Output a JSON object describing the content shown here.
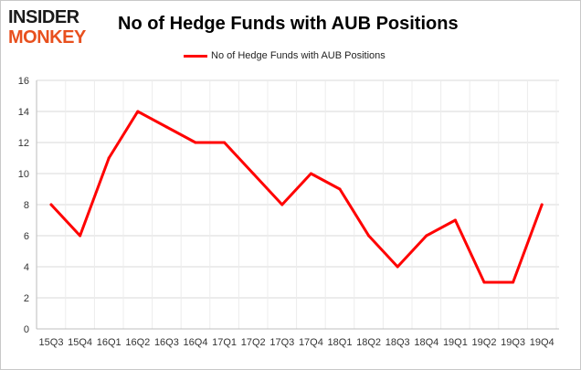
{
  "logo": {
    "line1": "INSIDER",
    "line2": "MONKEY",
    "color_dark": "#1a1a1a",
    "color_accent": "#e8501e"
  },
  "chart_data": {
    "type": "line",
    "title": "No of Hedge Funds with AUB Positions",
    "legend_position": "top-center",
    "grid": true,
    "ylim": [
      0,
      16
    ],
    "yticks": [
      0,
      2,
      4,
      6,
      8,
      10,
      12,
      14,
      16
    ],
    "categories": [
      "15Q3",
      "15Q4",
      "16Q1",
      "16Q2",
      "16Q3",
      "16Q4",
      "17Q1",
      "17Q2",
      "17Q3",
      "17Q4",
      "18Q1",
      "18Q2",
      "18Q3",
      "18Q4",
      "19Q1",
      "19Q2",
      "19Q3",
      "19Q4"
    ],
    "series": [
      {
        "name": "No of Hedge Funds with AUB Positions",
        "color": "#ff0000",
        "values": [
          8,
          6,
          11,
          14,
          13,
          12,
          12,
          10,
          8,
          10,
          9,
          6,
          4,
          6,
          7,
          3,
          3,
          8
        ]
      }
    ]
  }
}
